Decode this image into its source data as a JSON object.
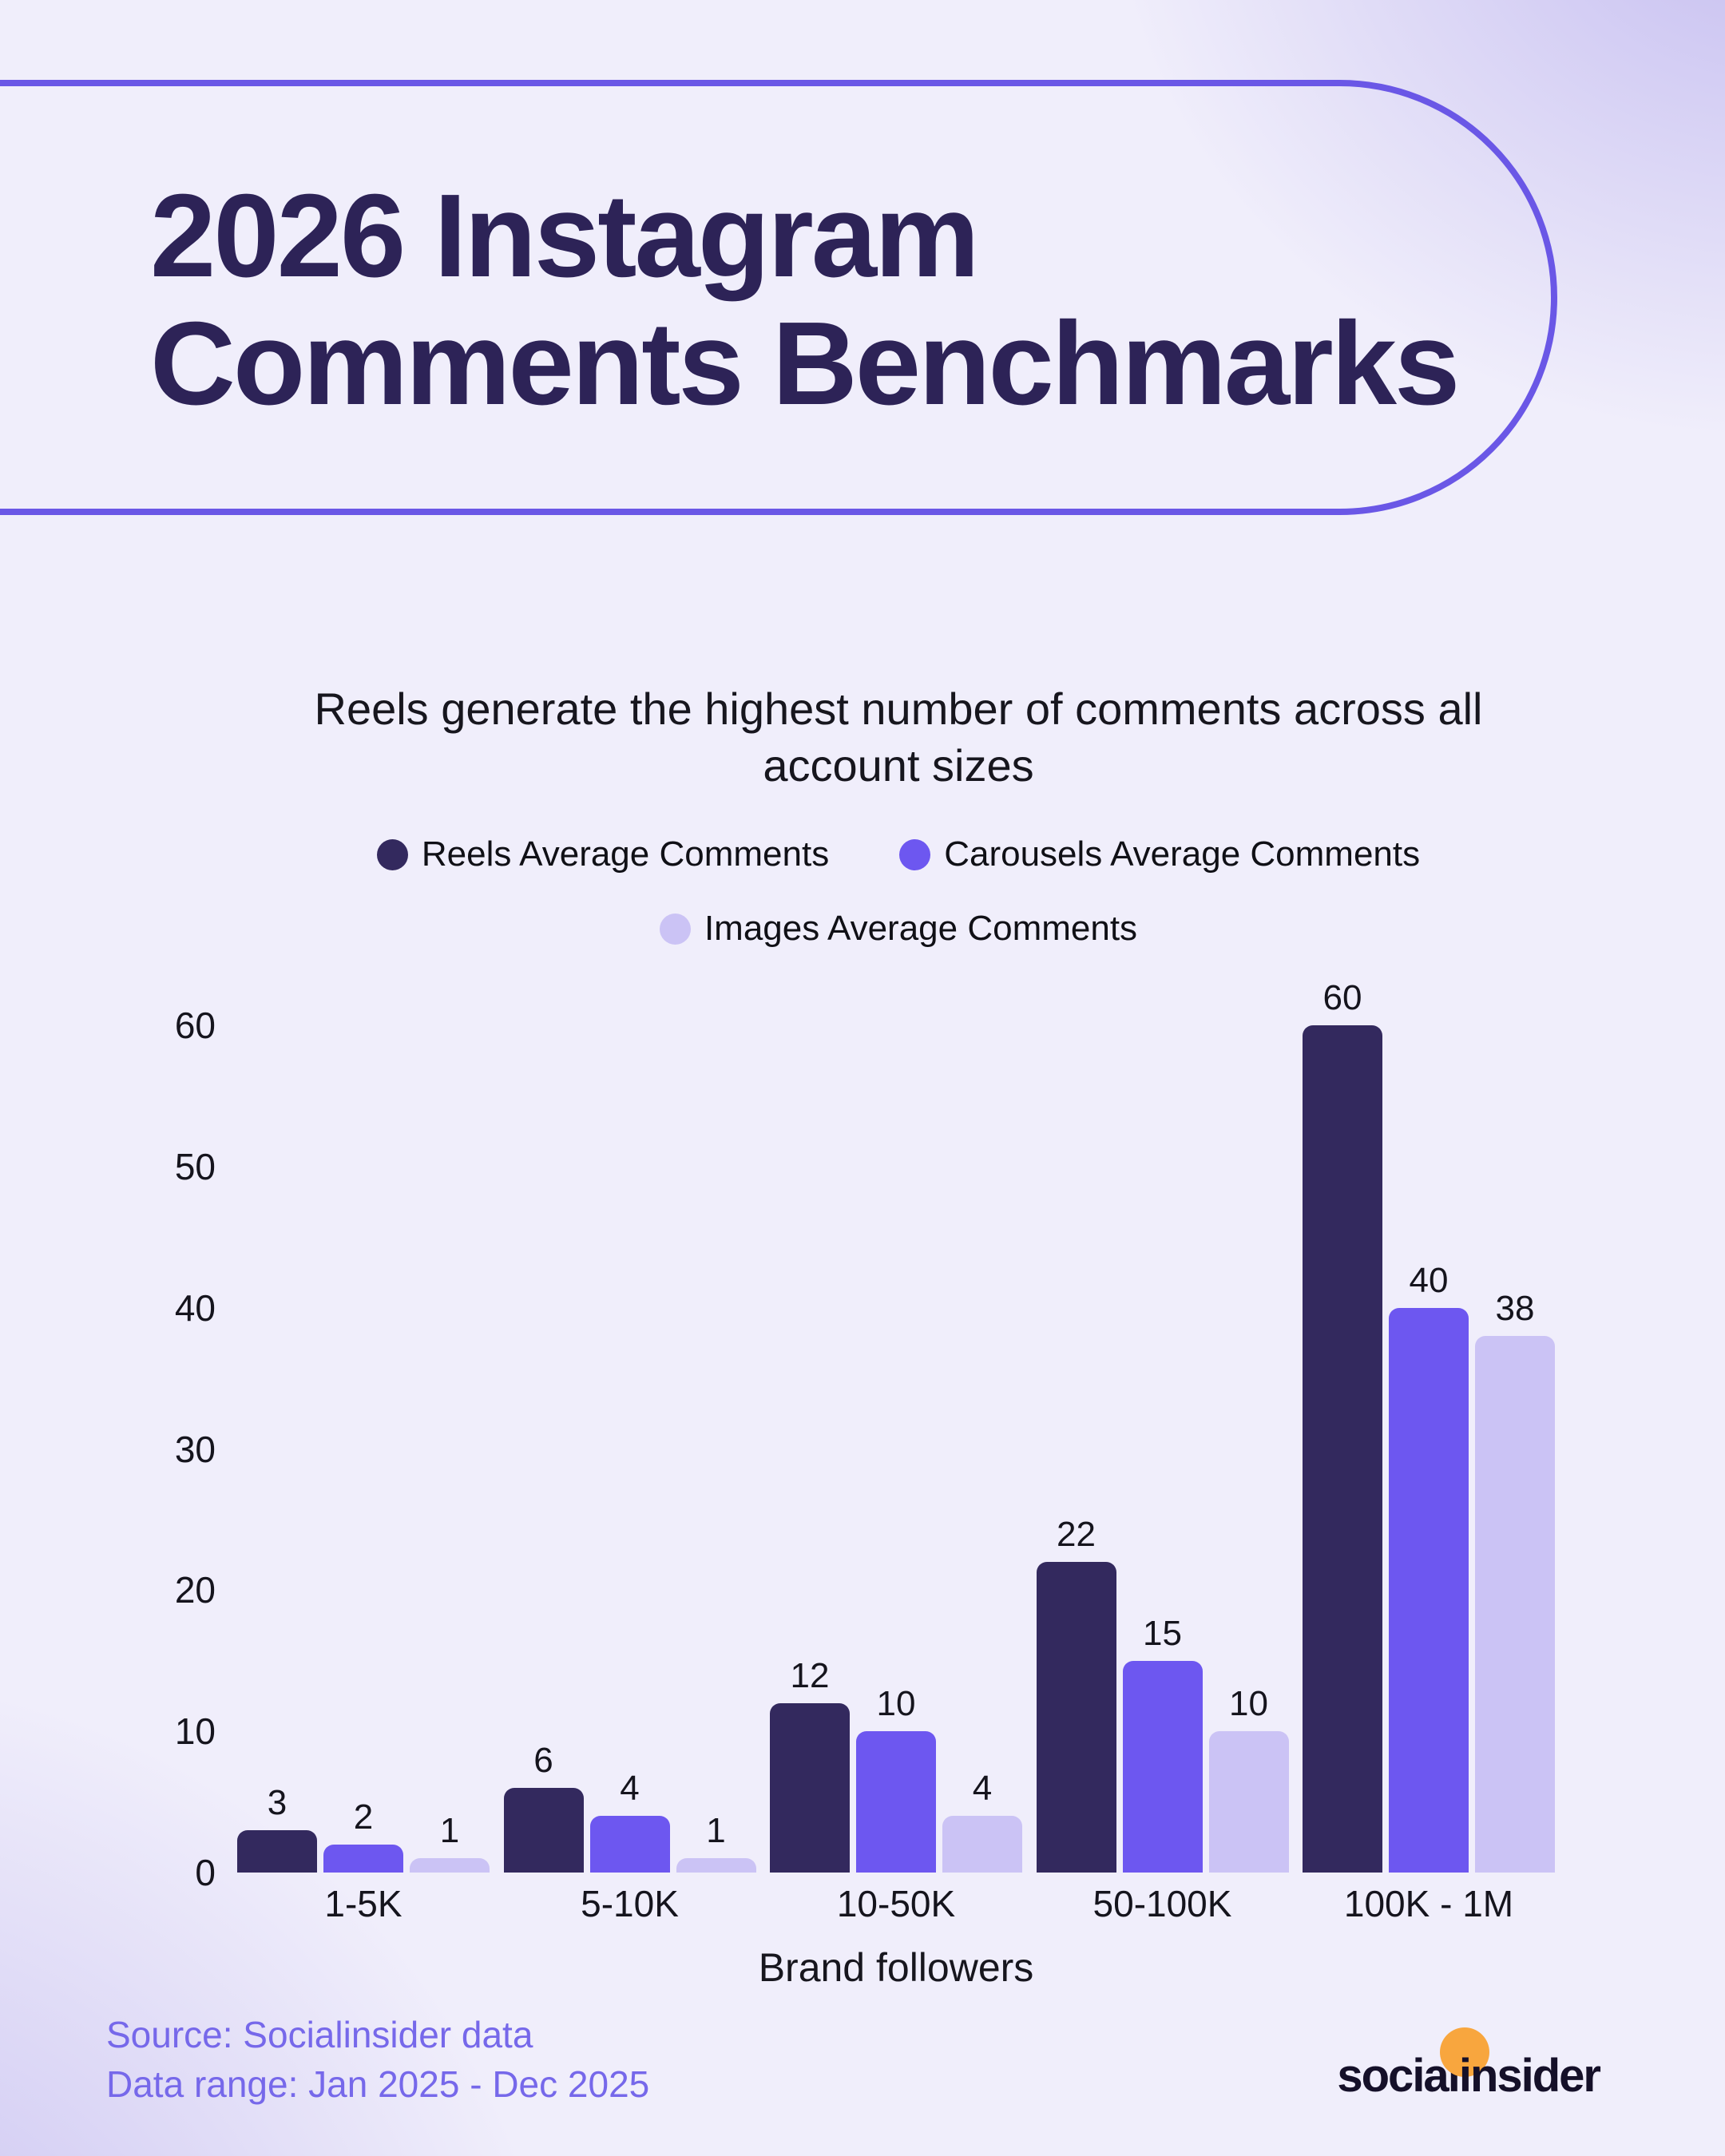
{
  "header": {
    "title_lines": [
      "2026 Instagram",
      "Comments Benchmarks"
    ]
  },
  "subtitle": {
    "lines": [
      "Reels generate the highest number of comments across all",
      "account sizes"
    ]
  },
  "legend": {
    "items": [
      {
        "label": "Reels Average Comments",
        "color": "#33295e"
      },
      {
        "label": "Carousels Average Comments",
        "color": "#6d57f0"
      },
      {
        "label": "Images Average Comments",
        "color": "#cbc3f5"
      }
    ]
  },
  "chart_data": {
    "type": "bar",
    "categories": [
      "1-5K",
      "5-10K",
      "10-50K",
      "50-100K",
      "100K - 1M"
    ],
    "series": [
      {
        "name": "Reels Average Comments",
        "color": "#33295e",
        "values": [
          3,
          6,
          12,
          22,
          60
        ]
      },
      {
        "name": "Carousels Average Comments",
        "color": "#6d57f0",
        "values": [
          2,
          4,
          10,
          15,
          40
        ]
      },
      {
        "name": "Images Average Comments",
        "color": "#cbc3f5",
        "values": [
          1,
          1,
          4,
          10,
          38
        ]
      }
    ],
    "title": "Reels generate the highest number of comments across all account sizes",
    "xlabel": "Brand followers",
    "ylabel": "",
    "ylim": [
      0,
      60
    ],
    "yticks": [
      0,
      10,
      20,
      30,
      40,
      50,
      60
    ],
    "grid": false,
    "legend_position": "top",
    "value_labels": true
  },
  "footer": {
    "source_line": "Source: Socialinsider data",
    "range_line": "Data range: Jan 2025 - Dec 2025",
    "logo_text": "socialinsider",
    "logo_dot_color": "#f8a63e"
  },
  "colors": {
    "accent_border": "#6a57e6",
    "title_text": "#2d2357",
    "body_text": "#15141d",
    "footer_text": "#7668ea",
    "background_base": "#f0eefb",
    "background_corner": "#cdc6f2"
  }
}
